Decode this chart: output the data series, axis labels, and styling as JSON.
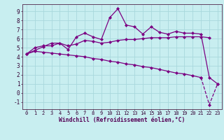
{
  "xlabel": "Windchill (Refroidissement éolien,°C)",
  "x": [
    0,
    1,
    2,
    3,
    4,
    5,
    6,
    7,
    8,
    9,
    10,
    11,
    12,
    13,
    14,
    15,
    16,
    17,
    18,
    19,
    20,
    21,
    22,
    23
  ],
  "line1": [
    4.3,
    5.0,
    5.2,
    5.2,
    5.5,
    4.8,
    6.2,
    6.6,
    6.2,
    5.9,
    8.3,
    9.3,
    7.5,
    7.3,
    6.5,
    7.3,
    6.7,
    6.5,
    6.8,
    6.6,
    6.6,
    6.5,
    1.7,
    1.0
  ],
  "line2": [
    4.3,
    4.7,
    5.1,
    5.5,
    5.5,
    5.2,
    5.4,
    5.8,
    5.7,
    5.5,
    5.6,
    5.8,
    5.9,
    5.9,
    6.0,
    6.1,
    6.1,
    6.1,
    6.2,
    6.2,
    6.2,
    6.2,
    6.1,
    null
  ],
  "line3_a": {
    "x": [
      0,
      1,
      2,
      3,
      4,
      5,
      6,
      7,
      8,
      9,
      10,
      11,
      12,
      13,
      14,
      15,
      16,
      17,
      18,
      19,
      20,
      21
    ],
    "y": [
      4.3,
      4.6,
      4.5,
      4.4,
      4.3,
      4.2,
      4.1,
      4.0,
      3.8,
      3.7,
      3.5,
      3.4,
      3.2,
      3.1,
      2.9,
      2.8,
      2.6,
      2.4,
      2.2,
      2.1,
      1.9,
      1.7
    ]
  },
  "line3_b": {
    "x": [
      21,
      22,
      23
    ],
    "y": [
      1.7,
      -1.3,
      1.0
    ]
  },
  "color": "#7b0082",
  "bg_color": "#c8eef0",
  "grid_color": "#a8d8dc",
  "ylim": [
    -1.8,
    9.8
  ],
  "yticks": [
    -1,
    0,
    1,
    2,
    3,
    4,
    5,
    6,
    7,
    8,
    9
  ],
  "xlim": [
    -0.5,
    23.5
  ],
  "marker": "D",
  "markersize": 2.0,
  "linewidth": 0.9
}
